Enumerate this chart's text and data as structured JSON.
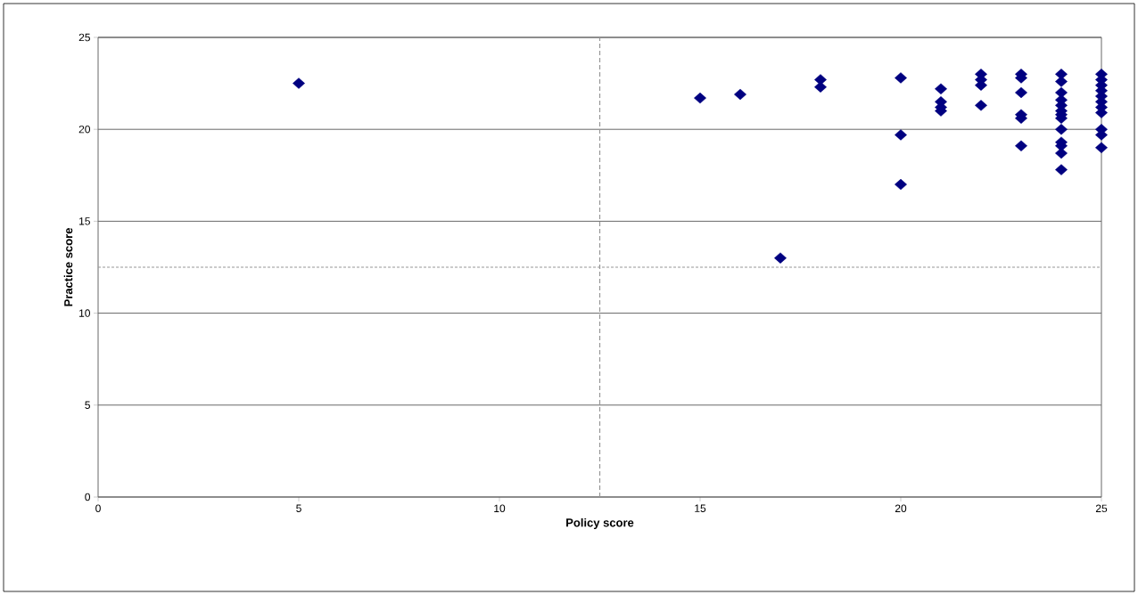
{
  "chart_data": {
    "type": "scatter",
    "xlabel": "Policy score",
    "ylabel": "Practice score",
    "series": [
      {
        "color": "#000080",
        "x": [
          5,
          15,
          16,
          17,
          18,
          18,
          20,
          20,
          20,
          21,
          21,
          21,
          21,
          22,
          22,
          22,
          22,
          23,
          23,
          23,
          23,
          23,
          23,
          24,
          24,
          24,
          24,
          24,
          24,
          24,
          24,
          24,
          24,
          24,
          24,
          24,
          25,
          25,
          25,
          25,
          25,
          25,
          25,
          25,
          25,
          25,
          25
        ],
        "values": [
          22.5,
          21.7,
          21.9,
          13.0,
          22.7,
          22.3,
          22.8,
          19.7,
          17.0,
          22.2,
          21.5,
          21.2,
          21.0,
          23.0,
          22.7,
          22.4,
          21.3,
          23.0,
          22.8,
          22.0,
          20.8,
          20.6,
          19.1,
          23.0,
          22.6,
          22.0,
          21.6,
          21.3,
          21.0,
          20.8,
          20.6,
          20.0,
          19.3,
          19.1,
          18.7,
          17.8,
          23.0,
          22.7,
          22.4,
          22.1,
          21.8,
          21.5,
          21.2,
          20.9,
          20.0,
          19.7,
          19.0
        ]
      }
    ],
    "xlim": [
      0,
      25
    ],
    "ylim": [
      0,
      25
    ],
    "xticks": [
      0,
      5,
      10,
      15,
      20,
      25
    ],
    "yticks": [
      0,
      5,
      10,
      15,
      20,
      25
    ],
    "grid": "y",
    "marker": "diamond",
    "ref_lines": [
      {
        "axis": "x",
        "value": 12.5,
        "color": "#969696",
        "line_style": "dashed"
      },
      {
        "axis": "y",
        "value": 12.5,
        "color": "#969696",
        "line_style": "dotted"
      }
    ]
  }
}
